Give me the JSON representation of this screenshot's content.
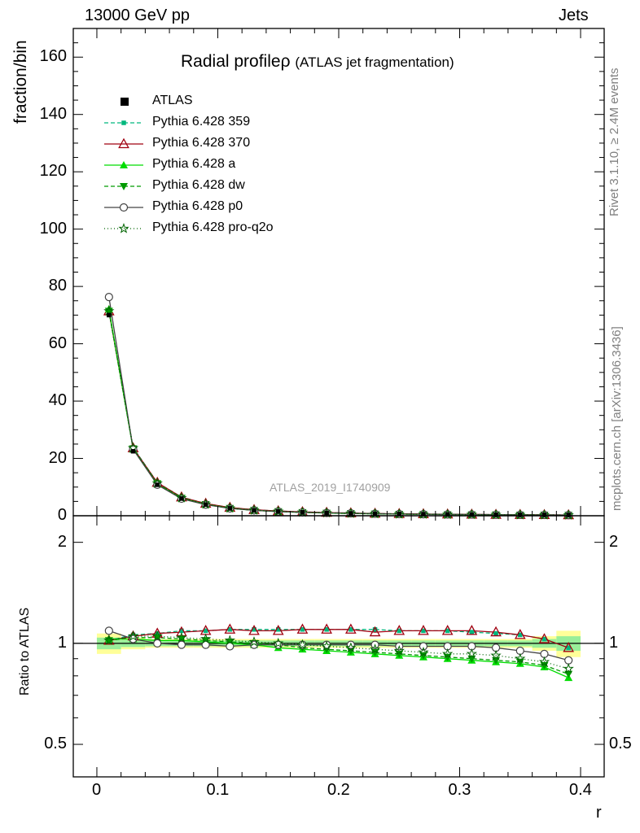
{
  "header": {
    "left": "13000 GeV pp",
    "right": "Jets"
  },
  "side_labels": {
    "rivet": "Rivet 3.1.10, ≥ 2.4M events",
    "mcplots": "mcplots.cern.ch [arXiv:1306.3436]"
  },
  "chart_data": {
    "type": "line",
    "title": "Radial profile",
    "title_symbol": "ρ",
    "title_note": "(ATLAS jet fragmentation)",
    "watermark": "ATLAS_2019_I1740909",
    "xlabel": "r",
    "ylabel": "fraction/bin",
    "ratio_ylabel": "Ratio to ATLAS",
    "xlim": [
      0,
      0.4
    ],
    "ylim": [
      0,
      170
    ],
    "ratio_ylim": [
      0.4,
      2.4
    ],
    "ratio_scale": "log",
    "x_ticks": [
      "0",
      "0.1",
      "0.2",
      "0.3",
      "0.4"
    ],
    "y_ticks": [
      "0",
      "20",
      "40",
      "60",
      "80",
      "100",
      "120",
      "140",
      "160"
    ],
    "ratio_ticks": [
      "0.5",
      "1",
      "2"
    ],
    "x": [
      0.01,
      0.03,
      0.05,
      0.07,
      0.09,
      0.11,
      0.13,
      0.15,
      0.17,
      0.19,
      0.21,
      0.23,
      0.25,
      0.27,
      0.29,
      0.31,
      0.33,
      0.35,
      0.37,
      0.39
    ],
    "data": {
      "name": "ATLAS",
      "values": [
        70.0,
        22.5,
        10.8,
        6.0,
        3.9,
        2.6,
        1.9,
        1.5,
        1.2,
        1.0,
        0.85,
        0.72,
        0.62,
        0.55,
        0.48,
        0.43,
        0.38,
        0.34,
        0.31,
        0.28
      ],
      "band_inner": [
        0.04,
        0.025,
        0.02,
        0.02,
        0.02,
        0.02,
        0.02,
        0.02,
        0.02,
        0.02,
        0.02,
        0.02,
        0.02,
        0.02,
        0.02,
        0.02,
        0.02,
        0.02,
        0.03,
        0.05
      ],
      "band_outer": [
        0.07,
        0.04,
        0.03,
        0.03,
        0.03,
        0.03,
        0.03,
        0.03,
        0.03,
        0.03,
        0.03,
        0.03,
        0.03,
        0.03,
        0.03,
        0.03,
        0.03,
        0.03,
        0.05,
        0.09
      ]
    },
    "series": [
      {
        "name": "Pythia 6.428 359",
        "color": "#00b77d",
        "dash": "5,3",
        "marker": "square",
        "ratio": [
          1.02,
          1.06,
          1.07,
          1.09,
          1.09,
          1.1,
          1.1,
          1.1,
          1.1,
          1.1,
          1.1,
          1.1,
          1.09,
          1.09,
          1.09,
          1.08,
          1.07,
          1.06,
          1.03,
          0.97
        ]
      },
      {
        "name": "Pythia 6.428 370",
        "color": "#a00010",
        "dash": "",
        "marker": "triangle-open",
        "ratio": [
          1.02,
          1.05,
          1.07,
          1.08,
          1.09,
          1.1,
          1.09,
          1.09,
          1.1,
          1.1,
          1.1,
          1.08,
          1.09,
          1.09,
          1.09,
          1.09,
          1.08,
          1.06,
          1.03,
          0.97
        ]
      },
      {
        "name": "Pythia 6.428 a",
        "color": "#00dd00",
        "dash": "",
        "marker": "triangle",
        "ratio": [
          1.03,
          1.03,
          1.02,
          1.02,
          1.01,
          1.0,
          0.99,
          0.97,
          0.96,
          0.95,
          0.94,
          0.93,
          0.92,
          0.91,
          0.9,
          0.89,
          0.88,
          0.87,
          0.85,
          0.79
        ]
      },
      {
        "name": "Pythia 6.428 dw",
        "color": "#009a00",
        "dash": "5,3",
        "marker": "triangle-down",
        "ratio": [
          1.02,
          1.04,
          1.04,
          1.03,
          1.02,
          1.01,
          1.0,
          0.99,
          0.97,
          0.96,
          0.95,
          0.94,
          0.93,
          0.92,
          0.91,
          0.9,
          0.89,
          0.88,
          0.86,
          0.81
        ]
      },
      {
        "name": "Pythia 6.428 p0",
        "color": "#444444",
        "dash": "",
        "marker": "circle-open",
        "ratio": [
          1.09,
          1.03,
          1.0,
          0.99,
          0.99,
          0.98,
          0.99,
          0.99,
          0.99,
          0.99,
          0.99,
          0.99,
          0.98,
          0.98,
          0.98,
          0.98,
          0.97,
          0.95,
          0.93,
          0.89
        ]
      },
      {
        "name": "Pythia 6.428 pro-q2o",
        "color": "#006400",
        "dash": "1,3",
        "marker": "star-open",
        "ratio": [
          1.02,
          1.05,
          1.05,
          1.04,
          1.03,
          1.02,
          1.01,
          1.0,
          0.99,
          0.98,
          0.97,
          0.96,
          0.95,
          0.94,
          0.93,
          0.93,
          0.92,
          0.9,
          0.88,
          0.84
        ]
      }
    ]
  }
}
